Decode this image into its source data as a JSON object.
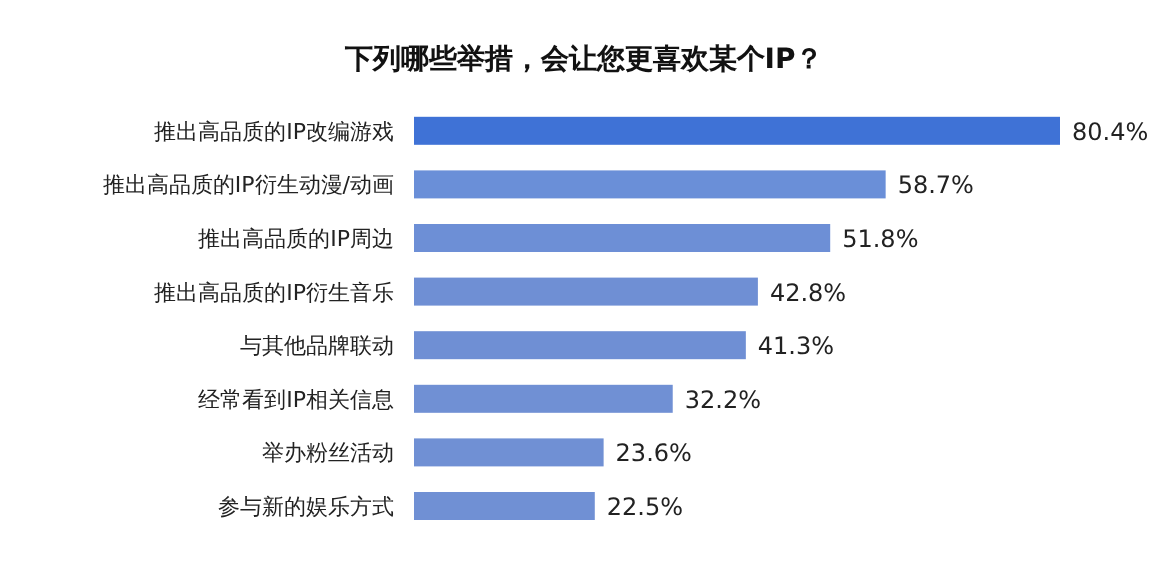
{
  "chart_data": {
    "type": "bar",
    "orientation": "horizontal",
    "title": "下列哪些举措，会让您更喜欢某个IP？",
    "categories": [
      "推出高品质的IP改编游戏",
      "推出高品质的IP衍生动漫/动画",
      "推出高品质的IP周边",
      "推出高品质的IP衍生音乐",
      "与其他品牌联动",
      "经常看到IP相关信息",
      "举办粉丝活动",
      "参与新的娱乐方式"
    ],
    "values": [
      80.4,
      58.7,
      51.8,
      42.8,
      41.3,
      32.2,
      23.6,
      22.5
    ],
    "value_labels": [
      "80.4%",
      "58.7%",
      "51.8%",
      "42.8%",
      "41.3%",
      "32.2%",
      "23.6%",
      "22.5%"
    ],
    "colors": [
      "#3f72d6",
      "#6a8fd8",
      "#6d8fd6",
      "#6f8fd4",
      "#6f8fd4",
      "#7090d4",
      "#7090d4",
      "#7090d4"
    ]
  }
}
